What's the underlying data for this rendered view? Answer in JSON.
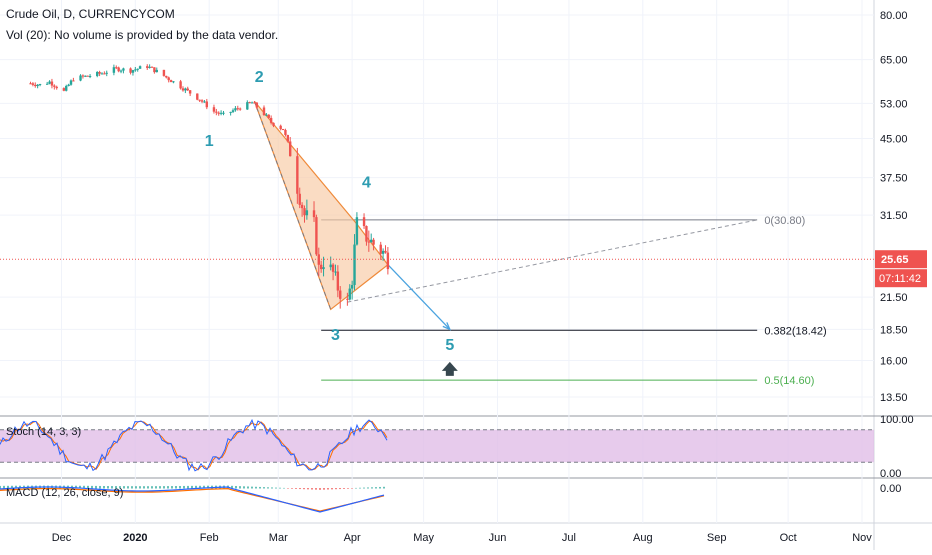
{
  "header": {
    "symbol": "Crude Oil, D, CURRENCYCOM",
    "volume_note": "Vol (20): No volume is provided by the data vendor."
  },
  "price_axis": {
    "ticks": [
      "80.00",
      "65.00",
      "53.00",
      "45.00",
      "37.50",
      "31.50",
      "25.65",
      "21.50",
      "18.50",
      "16.00",
      "13.50"
    ],
    "last_price": "25.65",
    "countdown": "07:11:42"
  },
  "stoch_axis": {
    "ticks": [
      "100.00",
      "0.00"
    ]
  },
  "macd_axis": {
    "ticks": [
      "0.00"
    ]
  },
  "time_axis": {
    "ticks": [
      "Dec",
      "2020",
      "Feb",
      "Mar",
      "Apr",
      "May",
      "Jun",
      "Jul",
      "Aug",
      "Sep",
      "Oct",
      "Nov"
    ]
  },
  "indicators": {
    "stoch_label": "Stoch (14, 3, 3)",
    "macd_label": "MACD (12, 26, close, 9)"
  },
  "wave_labels": [
    "1",
    "2",
    "3",
    "4",
    "5"
  ],
  "fib_levels": [
    {
      "label": "0(30.80)",
      "value": 30.8,
      "color": "#787b86"
    },
    {
      "label": "0.382(18.42)",
      "value": 18.42,
      "color": "#131722"
    },
    {
      "label": "0.5(14.60)",
      "value": 14.6,
      "color": "#4caf50"
    }
  ],
  "colors": {
    "up": "#26a69a",
    "down": "#ef5350",
    "wave_label": "#2d9cb1",
    "pattern_fill": "#f7c9a3",
    "pattern_stroke": "#ef8a3a",
    "projection": "#4aa3df",
    "stoch_band": "#e1bee7",
    "last_price": "#ef5350",
    "arrow": "#37474f"
  },
  "chart_data": {
    "type": "candlestick",
    "title": "Crude Oil, D, CURRENCYCOM",
    "y_scale": "log",
    "ylim": [
      12.5,
      85
    ],
    "series": [
      {
        "name": "price",
        "x": [
          "2019-11-18",
          "2019-11-22",
          "2019-11-26",
          "2019-12-02",
          "2019-12-06",
          "2019-12-12",
          "2019-12-18",
          "2019-12-24",
          "2019-12-30",
          "2020-01-06",
          "2020-01-10",
          "2020-01-16",
          "2020-01-22",
          "2020-01-28",
          "2020-02-03",
          "2020-02-07",
          "2020-02-13",
          "2020-02-19",
          "2020-02-24",
          "2020-02-27",
          "2020-03-03",
          "2020-03-06",
          "2020-03-09",
          "2020-03-12",
          "2020-03-16",
          "2020-03-18",
          "2020-03-20",
          "2020-03-24",
          "2020-03-26",
          "2020-03-30",
          "2020-04-01",
          "2020-04-03",
          "2020-04-07",
          "2020-04-09",
          "2020-04-14",
          "2020-04-16"
        ],
        "values": [
          58.2,
          57.8,
          58.6,
          56.0,
          59.5,
          60.2,
          61.0,
          62.3,
          61.8,
          63.0,
          61.5,
          59.0,
          56.5,
          54.0,
          51.0,
          50.2,
          51.8,
          53.2,
          50.5,
          48.5,
          47.0,
          42.5,
          36.0,
          31.5,
          30.0,
          24.5,
          25.5,
          24.0,
          22.5,
          20.8,
          23.5,
          30.2,
          28.5,
          27.8,
          26.5,
          25.65
        ]
      }
    ],
    "fibonacci": [
      {
        "ratio": "0",
        "value": 30.8
      },
      {
        "ratio": "0.382",
        "value": 18.42
      },
      {
        "ratio": "0.5",
        "value": 14.6
      }
    ],
    "stochastic": {
      "name": "Stoch (14, 3, 3)",
      "ylim": [
        0,
        100
      ],
      "bands": [
        20,
        80
      ]
    },
    "macd": {
      "name": "MACD (12, 26, close, 9)"
    }
  }
}
